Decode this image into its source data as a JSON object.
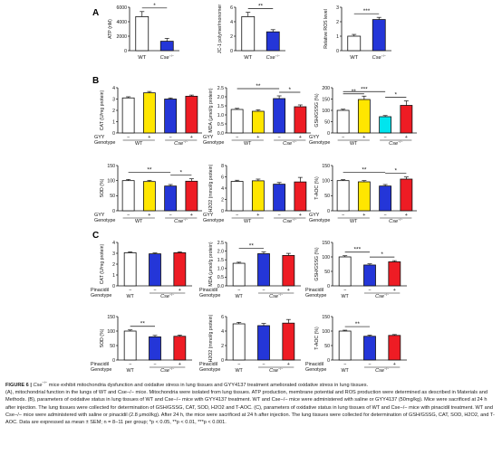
{
  "colors": {
    "wt": "#ffffff",
    "wt_gyy": "#ffe600",
    "cse": "#2436d8",
    "cse_gyy": "#ee1c24",
    "cse_gyy_b": "#00e5ee",
    "cse_pin": "#ee1c24"
  },
  "chart_data": [
    {
      "id": "A1",
      "panel": "A",
      "type": "bar",
      "ylabel": "ATP (nM)",
      "ylim": [
        0,
        6000
      ],
      "yticks": [
        "0",
        "2000",
        "4000",
        "6000"
      ],
      "categories": [
        "WT",
        "Cse-/-"
      ],
      "values": [
        4700,
        1300
      ],
      "errors": [
        700,
        400
      ],
      "colors": [
        "#ffffff",
        "#2436d8"
      ],
      "annotations": [
        {
          "from": 0,
          "to": 1,
          "text": "*"
        }
      ]
    },
    {
      "id": "A2",
      "panel": "A",
      "type": "bar",
      "ylabel": "JC-1 polymer/monomer",
      "ylim": [
        0,
        6
      ],
      "yticks": [
        "0",
        "2",
        "4",
        "6"
      ],
      "categories": [
        "WT",
        "Cse-/-"
      ],
      "values": [
        4.7,
        2.6
      ],
      "errors": [
        0.6,
        0.3
      ],
      "colors": [
        "#ffffff",
        "#2436d8"
      ],
      "annotations": [
        {
          "from": 0,
          "to": 1,
          "text": "**"
        }
      ]
    },
    {
      "id": "A3",
      "panel": "A",
      "type": "bar",
      "ylabel": "Relative ROS level",
      "ylim": [
        0,
        3
      ],
      "yticks": [
        "0",
        "1",
        "2",
        "3"
      ],
      "categories": [
        "WT",
        "Cse-/-"
      ],
      "values": [
        1.0,
        2.15
      ],
      "errors": [
        0.12,
        0.15
      ],
      "colors": [
        "#ffffff",
        "#2436d8"
      ],
      "annotations": [
        {
          "from": 0,
          "to": 1,
          "text": "***"
        }
      ]
    },
    {
      "id": "B1",
      "panel": "B",
      "type": "bar",
      "ylabel": "CAT (U/mg protein)",
      "ylim": [
        0,
        4
      ],
      "yticks": [
        "0",
        "1",
        "2",
        "3",
        "4"
      ],
      "values": [
        3.1,
        3.55,
        3.0,
        3.25
      ],
      "errors": [
        0.1,
        0.12,
        0.1,
        0.1
      ],
      "colors": [
        "#ffffff",
        "#ffe600",
        "#2436d8",
        "#ee1c24"
      ],
      "annotations": []
    },
    {
      "id": "B2",
      "panel": "B",
      "type": "bar",
      "ylabel": "MDA (μmol/g protein)",
      "ylim": [
        0,
        2.5
      ],
      "yticks": [
        "0.0",
        "0.5",
        "1.0",
        "1.5",
        "2.0",
        "2.5"
      ],
      "values": [
        1.3,
        1.2,
        1.9,
        1.45
      ],
      "errors": [
        0.06,
        0.08,
        0.15,
        0.1
      ],
      "colors": [
        "#ffffff",
        "#ffe600",
        "#2436d8",
        "#ee1c24"
      ],
      "annotations": [
        {
          "from": 0,
          "to": 2,
          "text": "**"
        },
        {
          "from": 2,
          "to": 3,
          "text": "*"
        }
      ]
    },
    {
      "id": "B3",
      "panel": "B",
      "type": "bar",
      "ylabel": "GSH/GSSG (%)",
      "ylim": [
        0,
        200
      ],
      "yticks": [
        "0",
        "50",
        "100",
        "150",
        "200"
      ],
      "values": [
        100,
        148,
        72,
        122
      ],
      "errors": [
        5,
        15,
        5,
        20
      ],
      "colors": [
        "#ffffff",
        "#ffe600",
        "#00e5ee",
        "#ee1c24"
      ],
      "annotations": [
        {
          "from": 0,
          "to": 1,
          "text": "**"
        },
        {
          "from": 0,
          "to": 2,
          "text": "***"
        },
        {
          "from": 2,
          "to": 3,
          "text": "*"
        }
      ]
    },
    {
      "id": "B4",
      "panel": "B",
      "type": "bar",
      "ylabel": "SOD (%)",
      "ylim": [
        0,
        150
      ],
      "yticks": [
        "0",
        "50",
        "100",
        "150"
      ],
      "values": [
        100,
        97,
        82,
        98
      ],
      "errors": [
        4,
        4,
        5,
        8
      ],
      "colors": [
        "#ffffff",
        "#ffe600",
        "#2436d8",
        "#ee1c24"
      ],
      "annotations": [
        {
          "from": 0,
          "to": 2,
          "text": "**"
        },
        {
          "from": 2,
          "to": 3,
          "text": "*"
        }
      ]
    },
    {
      "id": "B5",
      "panel": "B",
      "type": "bar",
      "ylabel": "H2O2 (mmol/g protein)",
      "ylim": [
        0,
        8
      ],
      "yticks": [
        "0",
        "2",
        "4",
        "6",
        "8"
      ],
      "values": [
        5.2,
        5.3,
        4.7,
        5.1
      ],
      "errors": [
        0.2,
        0.3,
        0.3,
        0.8
      ],
      "colors": [
        "#ffffff",
        "#ffe600",
        "#2436d8",
        "#ee1c24"
      ],
      "annotations": []
    },
    {
      "id": "B6",
      "panel": "B",
      "type": "bar",
      "ylabel": "T-AOC (%)",
      "ylim": [
        0,
        150
      ],
      "yticks": [
        "0",
        "50",
        "100",
        "150"
      ],
      "values": [
        100,
        96,
        82,
        105
      ],
      "errors": [
        3,
        4,
        5,
        7
      ],
      "colors": [
        "#ffffff",
        "#ffe600",
        "#2436d8",
        "#ee1c24"
      ],
      "annotations": [
        {
          "from": 0,
          "to": 2,
          "text": "**"
        },
        {
          "from": 2,
          "to": 3,
          "text": "*"
        }
      ]
    },
    {
      "id": "C1",
      "panel": "C",
      "type": "bar",
      "ylabel": "CAT (U/mg protein)",
      "ylim": [
        0,
        4
      ],
      "yticks": [
        "0",
        "1",
        "2",
        "3",
        "4"
      ],
      "values": [
        3.05,
        2.95,
        3.05
      ],
      "errors": [
        0.08,
        0.08,
        0.08
      ],
      "colors": [
        "#ffffff",
        "#2436d8",
        "#ee1c24"
      ],
      "annotations": []
    },
    {
      "id": "C2",
      "panel": "C",
      "type": "bar",
      "ylabel": "MDA (μmol/g protein)",
      "ylim": [
        0,
        2.5
      ],
      "yticks": [
        "0.0",
        "0.5",
        "1.0",
        "1.5",
        "2.0",
        "2.5"
      ],
      "values": [
        1.3,
        1.85,
        1.75
      ],
      "errors": [
        0.06,
        0.1,
        0.12
      ],
      "colors": [
        "#ffffff",
        "#2436d8",
        "#ee1c24"
      ],
      "annotations": [
        {
          "from": 0,
          "to": 1,
          "text": "**"
        }
      ]
    },
    {
      "id": "C3",
      "panel": "C",
      "type": "bar",
      "ylabel": "GSH/GSSG (%)",
      "ylim": [
        0,
        150
      ],
      "yticks": [
        "0",
        "50",
        "100",
        "150"
      ],
      "values": [
        100,
        72,
        83
      ],
      "errors": [
        4,
        4,
        4
      ],
      "colors": [
        "#ffffff",
        "#2436d8",
        "#ee1c24"
      ],
      "annotations": [
        {
          "from": 0,
          "to": 1,
          "text": "***"
        },
        {
          "from": 1,
          "to": 2,
          "text": "*"
        }
      ]
    },
    {
      "id": "C4",
      "panel": "C",
      "type": "bar",
      "ylabel": "SOD (%)",
      "ylim": [
        0,
        150
      ],
      "yticks": [
        "0",
        "50",
        "100",
        "150"
      ],
      "values": [
        100,
        80,
        82
      ],
      "errors": [
        4,
        5,
        4
      ],
      "colors": [
        "#ffffff",
        "#2436d8",
        "#ee1c24"
      ],
      "annotations": [
        {
          "from": 0,
          "to": 1,
          "text": "**"
        }
      ]
    },
    {
      "id": "C5",
      "panel": "C",
      "type": "bar",
      "ylabel": "H2O2 (mmol/g protein)",
      "ylim": [
        0,
        6
      ],
      "yticks": [
        "0",
        "2",
        "4",
        "6"
      ],
      "values": [
        5.0,
        4.75,
        5.1
      ],
      "errors": [
        0.2,
        0.3,
        0.5
      ],
      "colors": [
        "#ffffff",
        "#2436d8",
        "#ee1c24"
      ],
      "annotations": []
    },
    {
      "id": "C6",
      "panel": "C",
      "type": "bar",
      "ylabel": "T-AOC (%)",
      "ylim": [
        0,
        150
      ],
      "yticks": [
        "0",
        "50",
        "100",
        "150"
      ],
      "values": [
        100,
        82,
        85
      ],
      "errors": [
        3,
        4,
        3
      ],
      "colors": [
        "#ffffff",
        "#2436d8",
        "#ee1c24"
      ],
      "annotations": [
        {
          "from": 0,
          "to": 1,
          "text": "**"
        }
      ]
    }
  ],
  "panel_labels": {
    "A": "A",
    "B": "B",
    "C": "C"
  },
  "group_labels": {
    "wt": "WT",
    "cse": "Cse",
    "cse_sup": "−/−",
    "gyy": "GYY",
    "genotype": "Genotype",
    "pinacidil": "Pinacidil",
    "minus": "−",
    "plus": "+"
  },
  "caption": {
    "figure_label": "FIGURE 6 |",
    "title_rest": " mice exhibit mitochondria dysfunction and oxidative stress in lung tissues and GYY4137 treatment ameliorated oxidative stress in lung tissues.",
    "title_gene": "Cse",
    "para_a": "(A), mitochondrial function in the lungs of WT and Cse−/− mice. Mitochondria were isolated from lung tissues. ATP production, membrane potential and ROS production were determined as described in Materials and Methods. (B), parameters of oxidative status in lung tissues of WT and Cse−/− mice with GYY4137 treatment. WT and Cse−/− mice were administered with saline or GYY4137 (50mg/kg). Mice were sacrificed at 24 h after injection. The lung tissues were collected for determination of GSH/GSSG, CAT, SOD, H2O2 and T-AOC. (C), parameters of oxidative status in lung tissues of WT and Cse−/− mice with pinacidil treatment. WT and Cse−/− mice were administered with saline or pinacidil (2.8 μmol/kg). After 24 h, the mice were sacrificed at 24 h after injection. The lung tissues were collected for determination of GSH/GSSG, CAT, SOD, H2O2, and T-AOC. Data are expressed as mean ± SEM; n = 8−11 per group; *p < 0.05, **p < 0.01, ***p < 0.001."
  }
}
